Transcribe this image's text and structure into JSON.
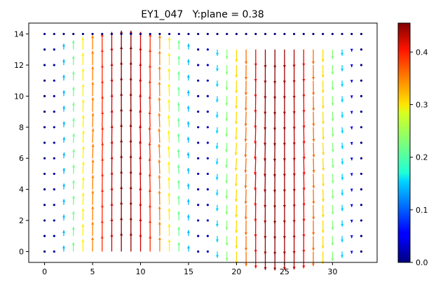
{
  "chart_data": {
    "type": "quiver",
    "title": "EY1_047   Y:plane = 0.38",
    "xlabel": "",
    "ylabel": "",
    "xlim": [
      -1.65,
      34.65
    ],
    "ylim": [
      -0.7,
      14.7
    ],
    "xticks": [
      0,
      5,
      10,
      15,
      20,
      25,
      30
    ],
    "yticks": [
      0,
      2,
      4,
      6,
      8,
      10,
      12,
      14
    ],
    "grid": false,
    "grid_x": {
      "min": 0,
      "max": 33,
      "step": 1
    },
    "grid_y": {
      "min": 0,
      "max": 14,
      "step": 1
    },
    "colormap": "jet",
    "colorbar": {
      "min": 0.0,
      "max": 0.455,
      "ticks": [
        0.0,
        0.1,
        0.2,
        0.3,
        0.4
      ],
      "tick_labels": [
        "0.0",
        "0.1",
        "0.2",
        "0.3",
        "0.4"
      ]
    },
    "regions": [
      {
        "name": "upward-flow-region",
        "x_range": [
          0,
          16
        ],
        "y_range": [
          0,
          14
        ],
        "direction": "up",
        "active_rows": [
          0,
          13
        ],
        "column_magnitudes": {
          "0": 0.0,
          "1": 0.02,
          "2": 0.14,
          "3": 0.22,
          "4": 0.29,
          "5": 0.34,
          "6": 0.38,
          "7": 0.42,
          "8": 0.45,
          "9": 0.45,
          "10": 0.42,
          "11": 0.38,
          "12": 0.34,
          "13": 0.29,
          "14": 0.22,
          "15": 0.14,
          "16": 0.02
        }
      },
      {
        "name": "downward-flow-region",
        "x_range": [
          17,
          33
        ],
        "y_range": [
          0,
          14
        ],
        "direction": "down",
        "active_rows": [
          0,
          13
        ],
        "column_magnitudes": {
          "17": 0.03,
          "18": 0.15,
          "19": 0.23,
          "20": 0.3,
          "21": 0.35,
          "22": 0.4,
          "23": 0.44,
          "24": 0.45,
          "25": 0.44,
          "26": 0.43,
          "27": 0.4,
          "28": 0.35,
          "29": 0.3,
          "30": 0.23,
          "31": 0.15,
          "32": 0.05,
          "33": 0.0
        }
      }
    ],
    "notes": "Top row (y=14) shows zero-magnitude dots across all x. Arrows in middle rows tilt slightly toward the region center."
  }
}
